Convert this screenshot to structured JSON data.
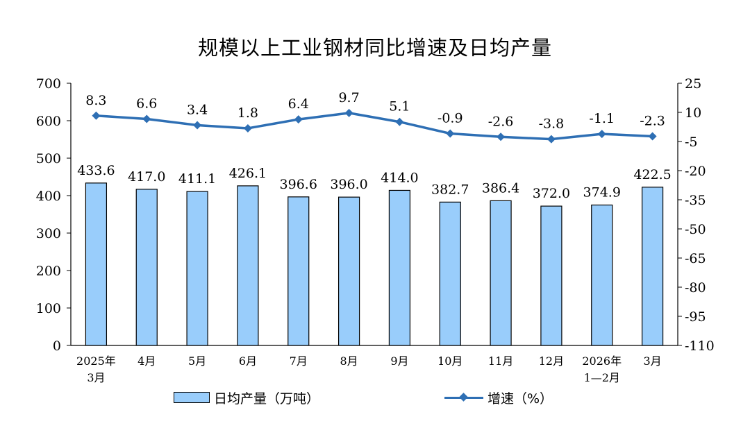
{
  "title": "规模以上工业钢材同比增速及日均产量",
  "chart_data": {
    "type": "bar+line",
    "categories": [
      [
        "2025年",
        "3月"
      ],
      [
        "4月"
      ],
      [
        "5月"
      ],
      [
        "6月"
      ],
      [
        "7月"
      ],
      [
        "8月"
      ],
      [
        "9月"
      ],
      [
        "10月"
      ],
      [
        "11月"
      ],
      [
        "12月"
      ],
      [
        "2026年",
        "1—2月"
      ],
      [
        "3月"
      ]
    ],
    "series": [
      {
        "name": "日均产量（万吨）",
        "type": "bar",
        "axis": "left",
        "values": [
          433.6,
          417.0,
          411.1,
          426.1,
          396.6,
          396.0,
          414.0,
          382.7,
          386.4,
          372.0,
          374.9,
          422.5
        ],
        "labels": [
          "433.6",
          "417.0",
          "411.1",
          "426.1",
          "396.6",
          "396.0",
          "414.0",
          "382.7",
          "386.4",
          "372.0",
          "374.9",
          "422.5"
        ],
        "color": "#99cdfb"
      },
      {
        "name": "增速（%）",
        "type": "line",
        "axis": "right",
        "values": [
          8.3,
          6.6,
          3.4,
          1.8,
          6.4,
          9.7,
          5.1,
          -0.9,
          -2.6,
          -3.8,
          -1.1,
          -2.3
        ],
        "labels": [
          "8.3",
          "6.6",
          "3.4",
          "1.8",
          "6.4",
          "9.7",
          "5.1",
          "-0.9",
          "-2.6",
          "-3.8",
          "-1.1",
          "-2.3"
        ],
        "color": "#2e6fb4"
      }
    ],
    "y_left": {
      "ylim": [
        0,
        700
      ],
      "ticks": [
        "700",
        "600",
        "500",
        "400",
        "300",
        "200",
        "100",
        "0"
      ]
    },
    "y_right": {
      "ylim": [
        -110,
        25
      ],
      "ticks": [
        "25",
        "10",
        "-5",
        "-20",
        "-35",
        "-50",
        "-65",
        "-80",
        "-95",
        "-110"
      ]
    },
    "legend": {
      "placement": "bottom",
      "bar_label": "日均产量（万吨）",
      "line_label": "增速（%）"
    },
    "grid": false
  }
}
